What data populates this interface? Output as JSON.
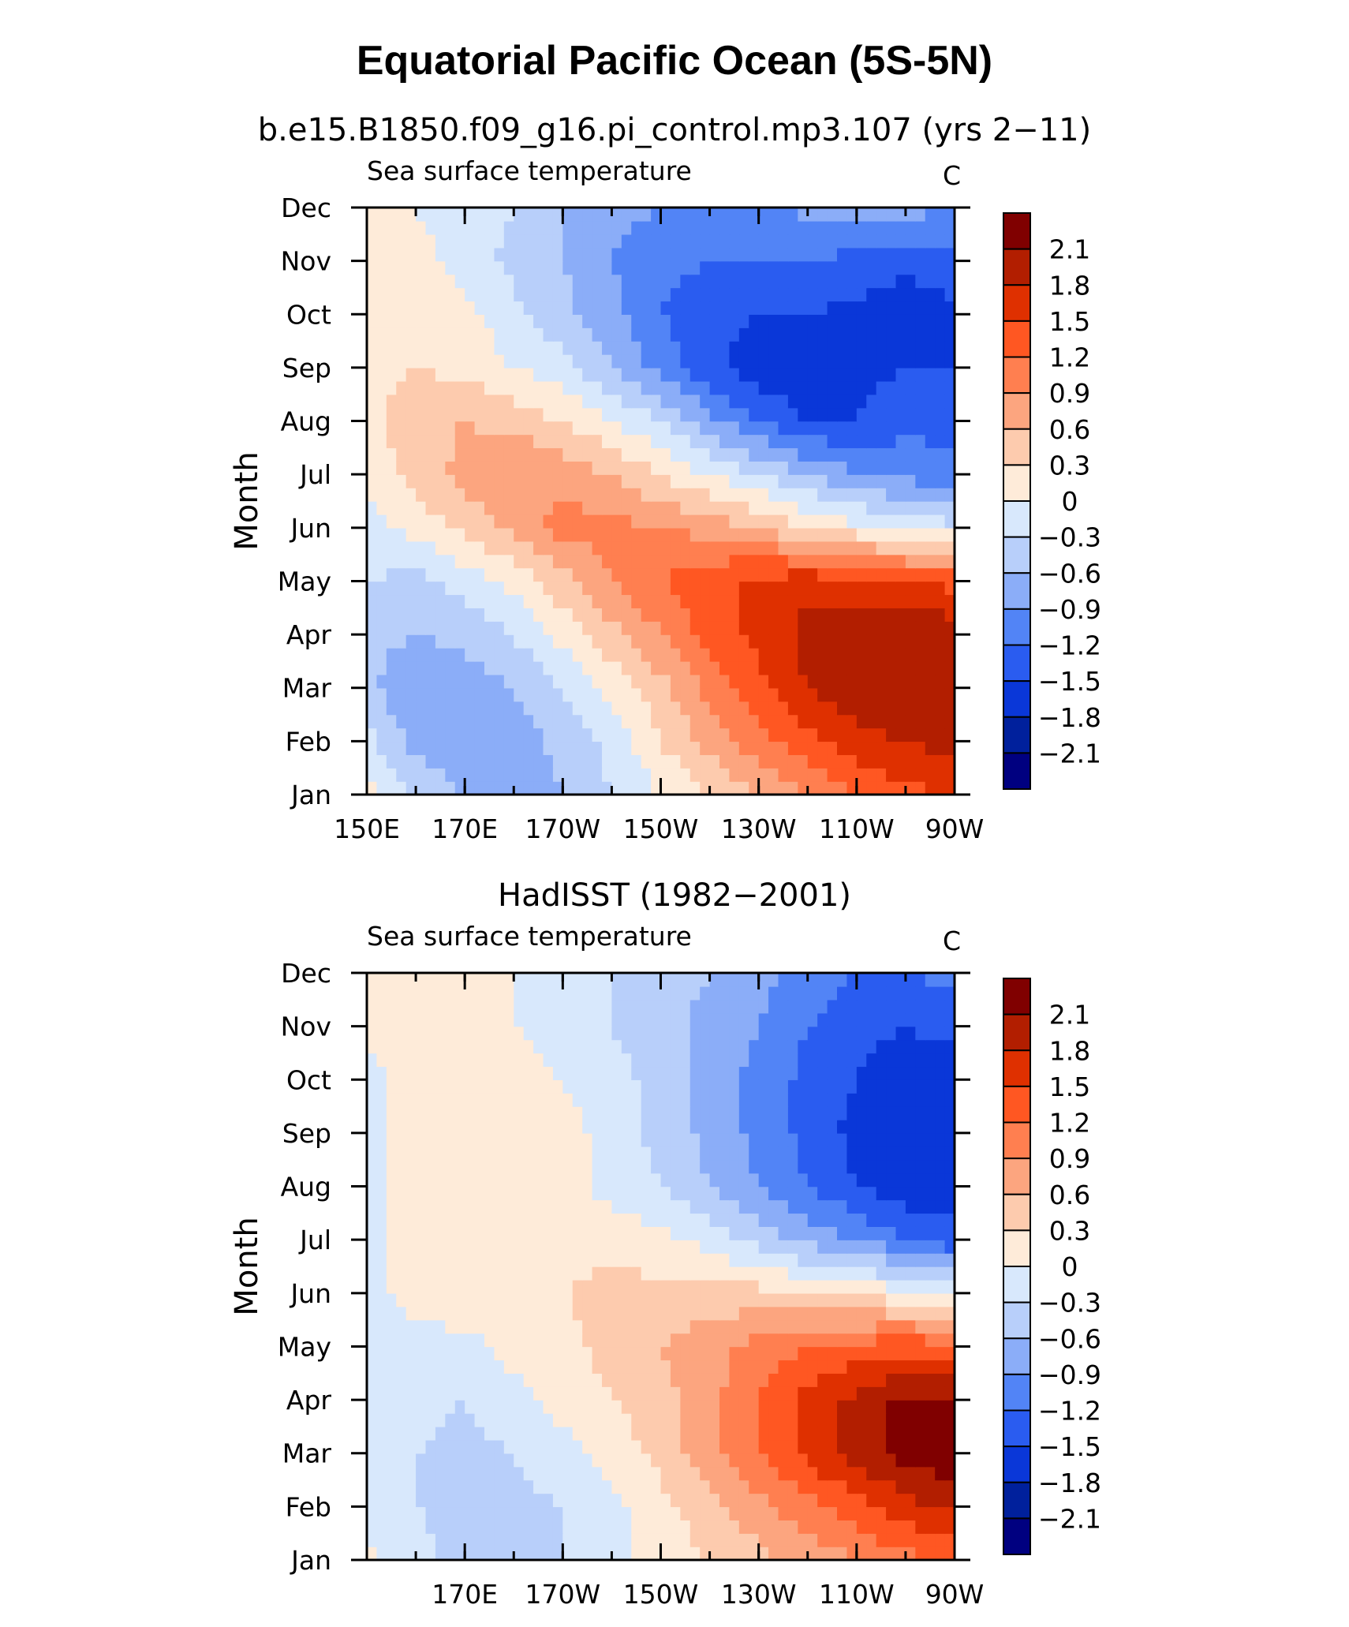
{
  "figure": {
    "title": "Equatorial Pacific Ocean (5S-5N)"
  },
  "chart_data": [
    {
      "type": "heatmap",
      "title": "b.e15.B1850.f09_g16.pi_control.mp3.107 (yrs 2−11)",
      "left_label": "Sea surface temperature",
      "units": "C",
      "ylabel": "Month",
      "xlabel": "",
      "x_ticks": [
        "150E",
        "170E",
        "170W",
        "150W",
        "130W",
        "110W",
        "90W"
      ],
      "y_ticks": [
        "Jan",
        "Feb",
        "Mar",
        "Apr",
        "May",
        "Jun",
        "Jul",
        "Aug",
        "Sep",
        "Oct",
        "Nov",
        "Dec"
      ],
      "x_range_deg_east": [
        150,
        270
      ],
      "levels": [
        "2.1",
        "1.8",
        "1.5",
        "1.2",
        "0.9",
        "0.6",
        "0.3",
        "0",
        "−0.3",
        "−0.6",
        "−0.9",
        "−1.2",
        "−1.5",
        "−1.8",
        "−2.1"
      ],
      "colors": [
        "#800000",
        "#b21e00",
        "#df3000",
        "#ff5722",
        "#ff7f50",
        "#fca57f",
        "#fdcbae",
        "#feebd9",
        "#d8e8fc",
        "#b8cffa",
        "#8badf8",
        "#5284f6",
        "#2a5cf0",
        "#0a37d8",
        "#00209c",
        "#000080"
      ],
      "grid_lon": [
        150,
        160,
        170,
        180,
        190,
        200,
        210,
        220,
        230,
        240,
        250,
        260,
        270
      ],
      "grid_month": [
        "Jan",
        "Feb",
        "Mar",
        "Apr",
        "May",
        "Jun",
        "Jul",
        "Aug",
        "Sep",
        "Oct",
        "Nov",
        "Dec"
      ],
      "anomaly_c": [
        [
          0.1,
          -0.3,
          -0.6,
          -0.8,
          -0.6,
          -0.3,
          0.0,
          0.3,
          0.6,
          0.9,
          1.2,
          1.4,
          1.5
        ],
        [
          -0.2,
          -0.7,
          -0.9,
          -0.8,
          -0.5,
          -0.2,
          0.3,
          0.7,
          1.1,
          1.4,
          1.7,
          1.8,
          1.9
        ],
        [
          -0.5,
          -0.9,
          -0.8,
          -0.6,
          -0.3,
          0.1,
          0.5,
          1.0,
          1.4,
          1.8,
          2.0,
          2.1,
          2.1
        ],
        [
          -0.5,
          -0.6,
          -0.5,
          -0.3,
          0.1,
          0.5,
          0.9,
          1.3,
          1.6,
          1.9,
          2.0,
          2.1,
          2.0
        ],
        [
          -0.3,
          -0.4,
          -0.2,
          0.1,
          0.5,
          0.9,
          1.2,
          1.4,
          1.6,
          1.7,
          1.6,
          1.5,
          1.4
        ],
        [
          -0.1,
          0.1,
          0.4,
          0.7,
          1.0,
          1.0,
          0.9,
          0.8,
          0.6,
          0.3,
          0.1,
          -0.1,
          -0.2
        ],
        [
          0.1,
          0.4,
          0.7,
          0.9,
          0.8,
          0.6,
          0.3,
          0.0,
          -0.3,
          -0.6,
          -0.9,
          -1.0,
          -1.1
        ],
        [
          0.2,
          0.5,
          0.6,
          0.5,
          0.3,
          0.0,
          -0.3,
          -0.8,
          -1.2,
          -1.5,
          -1.5,
          -1.3,
          -1.3
        ],
        [
          0.2,
          0.3,
          0.2,
          0.0,
          -0.2,
          -0.6,
          -1.0,
          -1.4,
          -1.7,
          -1.8,
          -1.6,
          -1.5,
          -1.5
        ],
        [
          0.1,
          0.2,
          0.1,
          -0.2,
          -0.5,
          -0.8,
          -1.2,
          -1.4,
          -1.5,
          -1.5,
          -1.6,
          -1.7,
          -1.6
        ],
        [
          0.3,
          0.1,
          -0.1,
          -0.4,
          -0.6,
          -0.9,
          -1.1,
          -1.2,
          -1.2,
          -1.2,
          -1.3,
          -1.4,
          -1.3
        ],
        [
          0.2,
          0.0,
          -0.2,
          -0.3,
          -0.6,
          -0.8,
          -0.9,
          -1.0,
          -1.0,
          -0.8,
          -0.7,
          -0.8,
          -0.9
        ]
      ]
    },
    {
      "type": "heatmap",
      "title": "HadISST (1982−2001)",
      "left_label": "Sea surface temperature",
      "units": "C",
      "ylabel": "Month",
      "xlabel": "",
      "x_ticks": [
        "170E",
        "170W",
        "150W",
        "130W",
        "110W",
        "90W"
      ],
      "y_ticks": [
        "Jan",
        "Feb",
        "Mar",
        "Apr",
        "May",
        "Jun",
        "Jul",
        "Aug",
        "Sep",
        "Oct",
        "Nov",
        "Dec"
      ],
      "x_range_deg_east": [
        150,
        270
      ],
      "levels": [
        "2.1",
        "1.8",
        "1.5",
        "1.2",
        "0.9",
        "0.6",
        "0.3",
        "0",
        "−0.3",
        "−0.6",
        "−0.9",
        "−1.2",
        "−1.5",
        "−1.8",
        "−2.1"
      ],
      "colors": [
        "#800000",
        "#b21e00",
        "#df3000",
        "#ff5722",
        "#ff7f50",
        "#fca57f",
        "#fdcbae",
        "#feebd9",
        "#d8e8fc",
        "#b8cffa",
        "#8badf8",
        "#5284f6",
        "#2a5cf0",
        "#0a37d8",
        "#00209c",
        "#000080"
      ],
      "grid_lon": [
        150,
        160,
        170,
        180,
        190,
        200,
        210,
        220,
        230,
        240,
        250,
        260,
        270
      ],
      "grid_month": [
        "Jan",
        "Feb",
        "Mar",
        "Apr",
        "May",
        "Jun",
        "Jul",
        "Aug",
        "Sep",
        "Oct",
        "Nov",
        "Dec"
      ],
      "anomaly_c": [
        [
          0.1,
          -0.2,
          -0.4,
          -0.4,
          -0.3,
          -0.1,
          0.1,
          0.3,
          0.5,
          0.7,
          0.9,
          1.1,
          1.2
        ],
        [
          -0.1,
          -0.3,
          -0.4,
          -0.4,
          -0.3,
          -0.1,
          0.2,
          0.5,
          0.8,
          1.1,
          1.4,
          1.7,
          1.9
        ],
        [
          -0.1,
          -0.3,
          -0.4,
          -0.3,
          -0.1,
          0.1,
          0.4,
          0.8,
          1.2,
          1.6,
          1.9,
          2.2,
          2.3
        ],
        [
          -0.1,
          -0.2,
          -0.3,
          -0.1,
          0.1,
          0.3,
          0.5,
          0.8,
          1.2,
          1.6,
          1.9,
          2.2,
          2.1
        ],
        [
          -0.1,
          -0.1,
          -0.1,
          0.1,
          0.2,
          0.4,
          0.6,
          0.8,
          1.0,
          1.2,
          1.3,
          1.4,
          1.3
        ],
        [
          -0.1,
          0.1,
          0.2,
          0.2,
          0.3,
          0.4,
          0.4,
          0.4,
          0.4,
          0.3,
          0.2,
          0.1,
          0.0
        ],
        [
          -0.1,
          0.1,
          0.2,
          0.2,
          0.2,
          0.2,
          0.1,
          -0.1,
          -0.4,
          -0.7,
          -0.9,
          -1.2,
          -1.4
        ],
        [
          -0.1,
          0.1,
          0.2,
          0.2,
          0.1,
          -0.1,
          -0.3,
          -0.6,
          -0.9,
          -1.2,
          -1.5,
          -1.7,
          -1.7
        ],
        [
          -0.1,
          0.1,
          0.2,
          0.3,
          0.1,
          -0.1,
          -0.4,
          -0.7,
          -1.0,
          -1.3,
          -1.6,
          -1.8,
          -1.8
        ],
        [
          -0.1,
          0.1,
          0.2,
          0.1,
          0.0,
          -0.2,
          -0.4,
          -0.7,
          -1.0,
          -1.3,
          -1.5,
          -1.7,
          -1.7
        ],
        [
          0.1,
          0.1,
          0.1,
          0.0,
          -0.1,
          -0.3,
          -0.5,
          -0.7,
          -0.9,
          -1.2,
          -1.4,
          -1.5,
          -1.4
        ],
        [
          0.1,
          0.1,
          0.1,
          0.0,
          -0.1,
          -0.3,
          -0.4,
          -0.6,
          -0.8,
          -1.0,
          -1.2,
          -1.2,
          -1.1
        ]
      ]
    }
  ]
}
